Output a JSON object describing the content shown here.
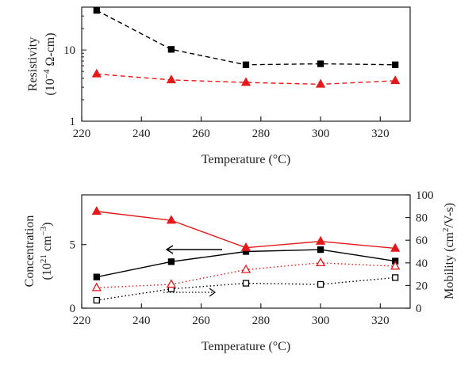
{
  "chart_data": [
    {
      "type": "line",
      "xlabel_main": "Temperature",
      "xlabel_unit": "(°C)",
      "ylabel_line1": "Resistivity",
      "ylabel_line2": "(10",
      "ylabel_exp": "−4",
      "ylabel_unit": " Ω-cm)",
      "xlim": [
        220,
        330
      ],
      "ylim": [
        1,
        40
      ],
      "yscale": "log",
      "x_ticks": [
        220,
        240,
        260,
        280,
        300,
        320
      ],
      "y_ticks": [
        1,
        10
      ],
      "x": [
        225,
        250,
        275,
        300,
        325
      ],
      "series": [
        {
          "values": [
            36,
            10.2,
            6.2,
            6.4,
            6.2
          ],
          "color": "#000000",
          "marker": "square-filled",
          "line": "dashed"
        },
        {
          "values": [
            4.6,
            3.8,
            3.5,
            3.3,
            3.7
          ],
          "color": "#e31a1c",
          "marker": "triangle-filled",
          "line": "dashed"
        }
      ]
    },
    {
      "type": "line",
      "xlabel_main": "Temperature",
      "xlabel_unit": "(°C)",
      "ylabel_left_line1": "Concentration",
      "ylabel_left_line2a": "(10",
      "ylabel_left_exp1": "21",
      "ylabel_left_line2b": " cm",
      "ylabel_left_exp2": "−3",
      "ylabel_left_line2c": ")",
      "ylabel_right_a": "Mobility (cm",
      "ylabel_right_exp": "2",
      "ylabel_right_b": "/V-s)",
      "xlim": [
        220,
        330
      ],
      "ylim_left": [
        0,
        8.9
      ],
      "ylim_right": [
        0,
        100
      ],
      "x_ticks": [
        220,
        240,
        260,
        280,
        300,
        320
      ],
      "y_ticks_left": [
        0,
        5
      ],
      "y_ticks_right": [
        0,
        20,
        40,
        60,
        80,
        100
      ],
      "x": [
        225,
        250,
        275,
        300,
        325
      ],
      "series": [
        {
          "axis": "left",
          "values": [
            2.45,
            3.65,
            4.45,
            4.6,
            3.7
          ],
          "color": "#000000",
          "marker": "square-filled",
          "line": "solid"
        },
        {
          "axis": "left",
          "values": [
            7.6,
            6.9,
            4.75,
            5.25,
            4.7
          ],
          "color": "#e31a1c",
          "marker": "triangle-filled",
          "line": "solid"
        },
        {
          "axis": "right",
          "values": [
            7,
            17,
            22,
            21,
            27
          ],
          "color": "#000000",
          "marker": "square-open",
          "line": "dotted"
        },
        {
          "axis": "right",
          "values": [
            18,
            21,
            34,
            40,
            37
          ],
          "color": "#e31a1c",
          "marker": "triangle-open",
          "line": "dotted"
        }
      ]
    }
  ]
}
